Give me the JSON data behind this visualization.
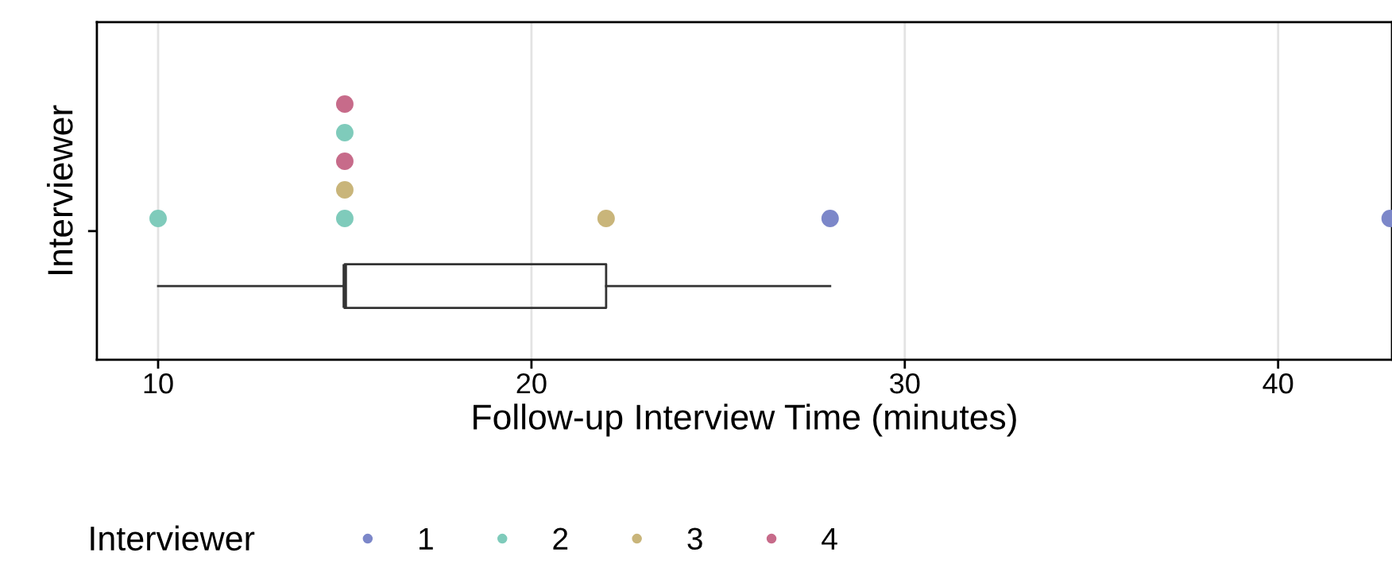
{
  "chart_data": {
    "type": "box",
    "orientation": "horizontal",
    "xlabel": "Follow-up Interview Time (minutes)",
    "ylabel": "Interviewer",
    "legend_title": "Interviewer",
    "categories": [
      null
    ],
    "boxes": [
      {
        "low": 10,
        "q1": 15,
        "median": 15,
        "q3": 22,
        "high": 28
      }
    ],
    "xlim": [
      8.36,
      43.05
    ],
    "xticks": [
      10,
      20,
      30,
      40
    ],
    "grid": "x",
    "legend": "bottom",
    "marker": "circle",
    "series": [
      {
        "name": "1",
        "type": "scatter",
        "color": "#7c87c9",
        "x": [
          null,
          null
        ],
        "values": [
          28,
          43
        ]
      },
      {
        "name": "2",
        "type": "scatter",
        "color": "#7fcbbb",
        "x": [
          null,
          null,
          null
        ],
        "values": [
          15,
          15,
          10
        ]
      },
      {
        "name": "3",
        "type": "scatter",
        "color": "#c9b57a",
        "x": [
          null,
          null
        ],
        "values": [
          15,
          22
        ]
      },
      {
        "name": "4",
        "type": "scatter",
        "color": "#c76b8a",
        "x": [
          null,
          null
        ],
        "values": [
          15,
          15
        ]
      }
    ]
  }
}
